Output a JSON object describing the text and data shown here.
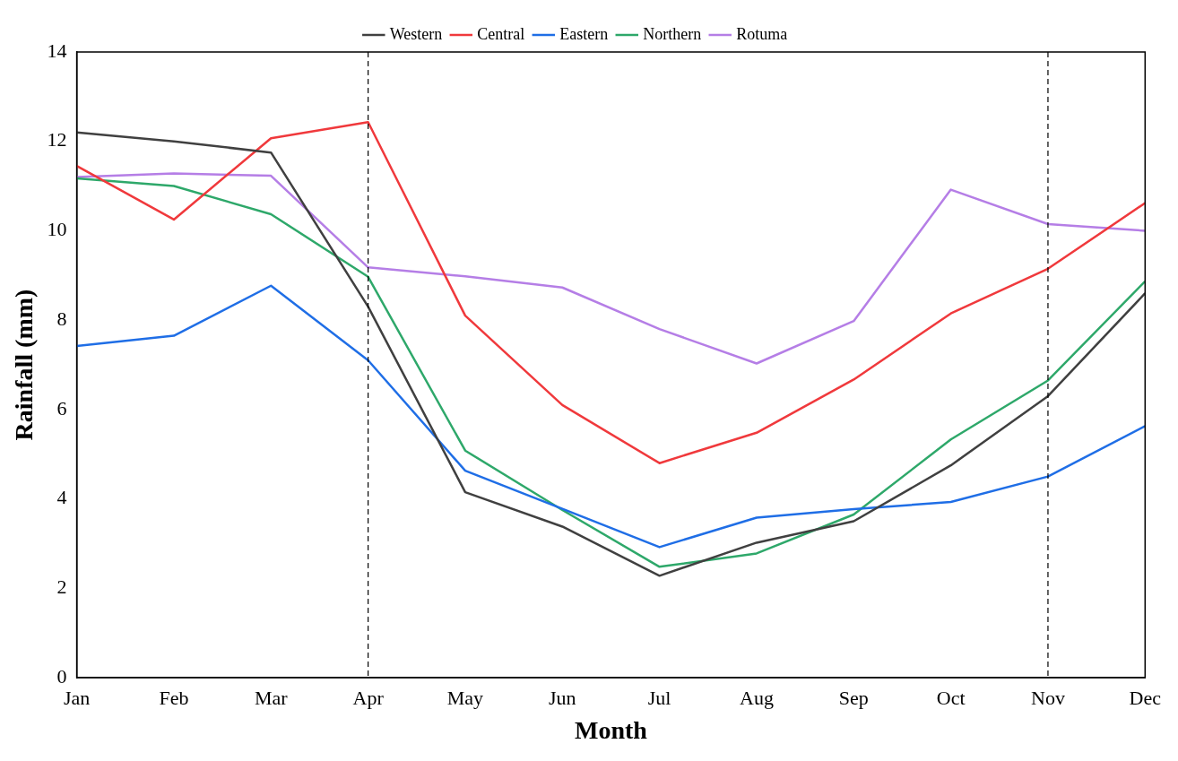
{
  "chart_data": {
    "type": "line",
    "xlabel": "Month",
    "ylabel": "Rainfall (mm)",
    "categories": [
      "Jan",
      "Feb",
      "Mar",
      "Apr",
      "May",
      "Jun",
      "Jul",
      "Aug",
      "Sep",
      "Oct",
      "Nov",
      "Dec"
    ],
    "series": [
      {
        "name": "Western",
        "color": "#404040",
        "values": [
          12.2,
          12.0,
          11.75,
          8.3,
          4.15,
          3.38,
          2.28,
          3.02,
          3.5,
          4.75,
          6.3,
          8.6
        ]
      },
      {
        "name": "Central",
        "color": "#f0393c",
        "values": [
          11.45,
          10.25,
          12.07,
          12.43,
          8.1,
          6.1,
          4.8,
          5.48,
          6.67,
          8.15,
          9.15,
          10.62
        ]
      },
      {
        "name": "Eastern",
        "color": "#1f6ee6",
        "values": [
          7.42,
          7.65,
          8.77,
          7.1,
          4.63,
          3.78,
          2.92,
          3.58,
          3.77,
          3.93,
          4.5,
          5.63
        ]
      },
      {
        "name": "Northern",
        "color": "#2ea86a",
        "values": [
          11.17,
          11.0,
          10.37,
          8.97,
          5.08,
          3.75,
          2.48,
          2.78,
          3.65,
          5.33,
          6.65,
          8.87
        ]
      },
      {
        "name": "Rotuma",
        "color": "#b57ee6",
        "values": [
          11.2,
          11.28,
          11.23,
          9.18,
          8.98,
          8.73,
          7.8,
          7.03,
          7.98,
          10.92,
          10.15,
          10.0
        ]
      }
    ],
    "ylim": [
      0,
      14
    ],
    "yticks": [
      0,
      2,
      4,
      6,
      8,
      10,
      12,
      14
    ],
    "grid": false,
    "legend": "top",
    "marker": "none",
    "line_style": "solid",
    "ref_lines": [
      {
        "axis": "x",
        "value": "Apr",
        "color": "#000000",
        "line_style": "dashed"
      },
      {
        "axis": "x",
        "value": "Nov",
        "color": "#000000",
        "line_style": "dashed"
      }
    ]
  }
}
